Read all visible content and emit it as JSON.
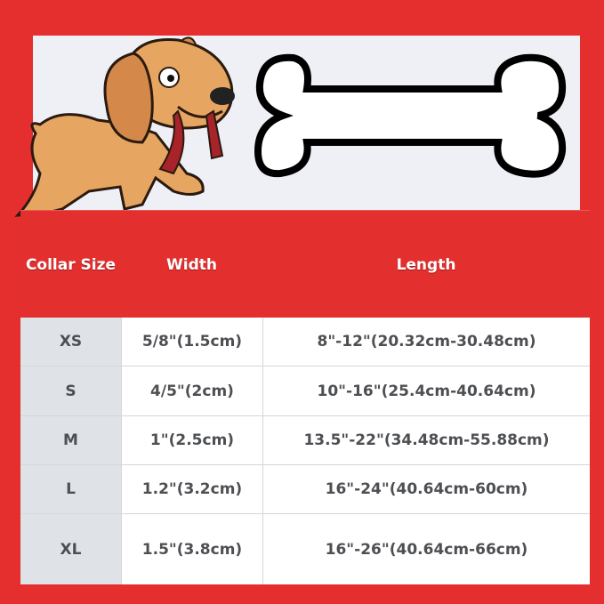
{
  "colors": {
    "background": "#e52e2e",
    "banner": "#eef0f6",
    "size_column": "#dfe3e8",
    "text": "#4d4f52"
  },
  "illustration": {
    "dog": "cartoon-dog-with-leash",
    "bone": "bone-icon"
  },
  "table": {
    "headers": [
      "Collar Size",
      "Width",
      "Length"
    ],
    "rows": [
      {
        "size": "XS",
        "width": "5/8\"(1.5cm)",
        "length": "8\"-12\"(20.32cm-30.48cm)"
      },
      {
        "size": "S",
        "width": "4/5\"(2cm)",
        "length": "10\"-16\"(25.4cm-40.64cm)"
      },
      {
        "size": "M",
        "width": "1\"(2.5cm)",
        "length": "13.5\"-22\"(34.48cm-55.88cm)"
      },
      {
        "size": "L",
        "width": "1.2\"(3.2cm)",
        "length": "16\"-24\"(40.64cm-60cm)"
      },
      {
        "size": "XL",
        "width": "1.5\"(3.8cm)",
        "length": "16\"-26\"(40.64cm-66cm)"
      }
    ]
  }
}
